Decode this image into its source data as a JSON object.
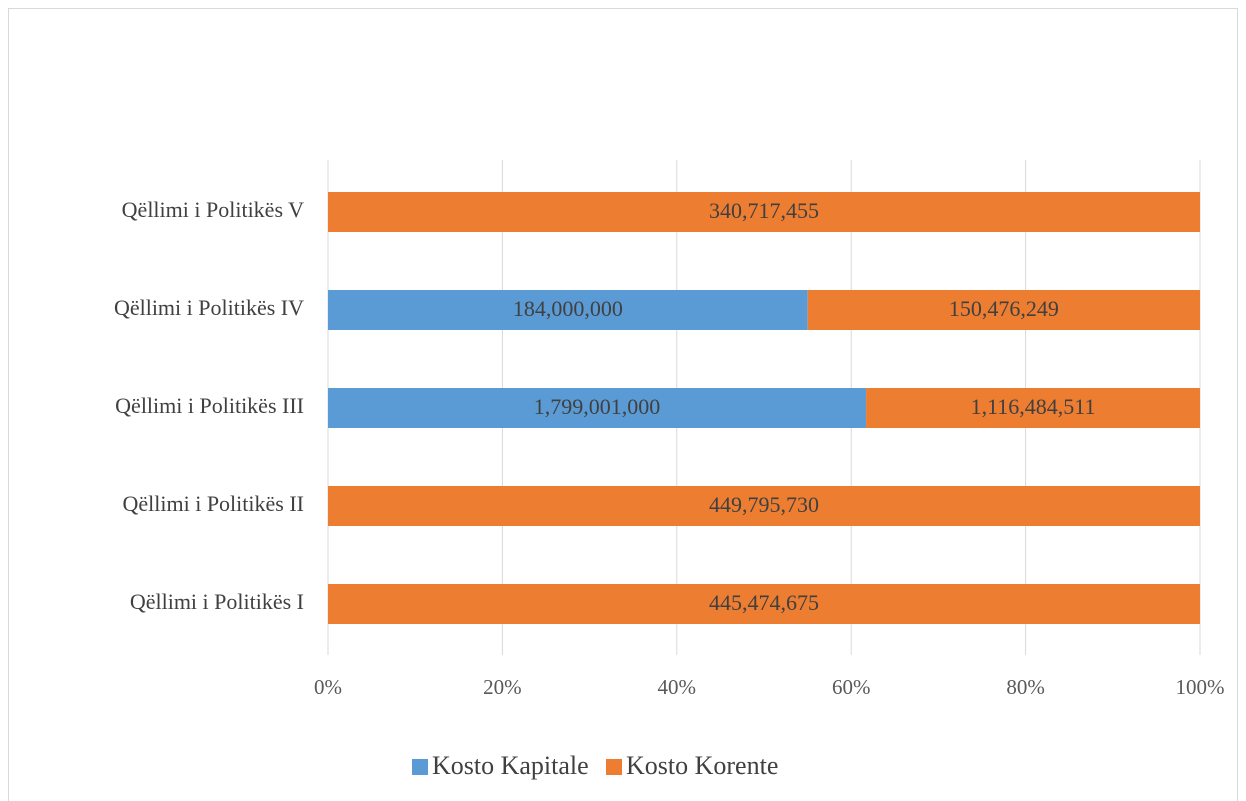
{
  "chart_data": {
    "type": "bar",
    "orientation": "horizontal",
    "stacked_percent": true,
    "categories": [
      "Qëllimi i Politikës I",
      "Qëllimi i Politikës II",
      "Qëllimi i Politikës III",
      "Qëllimi i Politikës IV",
      "Qëllimi i Politikës V"
    ],
    "series": [
      {
        "name": "Kosto Kapitale",
        "color": "#5b9bd5",
        "values": [
          0,
          0,
          1799001000,
          184000000,
          0
        ],
        "value_labels": [
          null,
          null,
          "1,799,001,000",
          "184,000,000",
          null
        ]
      },
      {
        "name": "Kosto Korente",
        "color": "#ed7d31",
        "values": [
          445474675,
          449795730,
          1116484511,
          150476249,
          340717455
        ],
        "value_labels": [
          "445,474,675",
          "449,795,730",
          "1,116,484,511",
          "150,476,249",
          "340,717,455"
        ]
      }
    ],
    "xlim": [
      0,
      100
    ],
    "xticks": [
      {
        "value": 0,
        "label": "0%"
      },
      {
        "value": 20,
        "label": "20%"
      },
      {
        "value": 40,
        "label": "40%"
      },
      {
        "value": 60,
        "label": "60%"
      },
      {
        "value": 80,
        "label": "80%"
      },
      {
        "value": 100,
        "label": "100%"
      }
    ],
    "grid": true,
    "legend": "bottom"
  }
}
